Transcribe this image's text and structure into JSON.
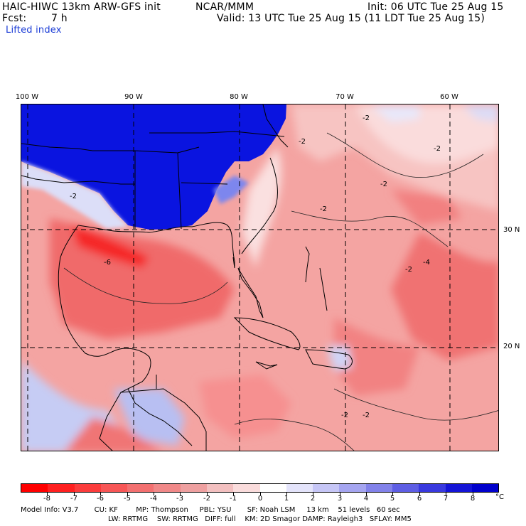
{
  "header": {
    "title": "HAIC-HIWC 13km ARW-GFS init",
    "org": "NCAR/MMM",
    "init": "Init: 06 UTC Tue 25 Aug 15",
    "fcst_label": "Fcst:",
    "fcst_value": "7 h",
    "valid": "Valid: 13 UTC Tue 25 Aug 15 (11 LDT Tue 25 Aug 15)",
    "field": "Lifted index"
  },
  "map": {
    "lon_labels": [
      "100 W",
      "90 W",
      "80 W",
      "70 W",
      "60 W"
    ],
    "lat_labels": [
      "30 N",
      "20 N"
    ],
    "contour_labels": [
      "-2",
      "-2",
      "-2",
      "-2",
      "-6",
      "-2",
      "-2",
      "-2",
      "-4",
      "-2",
      "-2"
    ],
    "colors": {
      "strong_negative": "#f52020",
      "moderate_negative": "#f26a6a",
      "weak_negative": "#f7b1b0",
      "neutral": "#ffffff",
      "positive_strong": "#0f18e6",
      "positive_light": "#c9cff6"
    }
  },
  "colorbar": {
    "labels": [
      "-8",
      "-7",
      "-6",
      "-5",
      "-4",
      "-3",
      "-2",
      "-1",
      "0",
      "1",
      "2",
      "3",
      "4",
      "5",
      "6",
      "7",
      "8"
    ],
    "unit": "°C",
    "colors": [
      "#ff0000",
      "#ff2020",
      "#fb3c3c",
      "#f75656",
      "#f37070",
      "#f08888",
      "#eea0a0",
      "#f3c0c0",
      "#fadcdc",
      "#ffffff",
      "#e4e4fb",
      "#c6c6f6",
      "#a5a5f0",
      "#8282ea",
      "#5e5ee4",
      "#3939de",
      "#1414d6",
      "#0000cc"
    ]
  },
  "model_info": {
    "line1": "Model Info: V3.7       CU: KF        MP: Thompson     PBL: YSU       SF: Noah LSM     13 km    51 levels   60 sec",
    "line2": "LW: RRTMG    SW: RRTMG   DIFF: full    KM: 2D Smagor DAMP: Rayleigh3   SFLAY: MM5"
  }
}
